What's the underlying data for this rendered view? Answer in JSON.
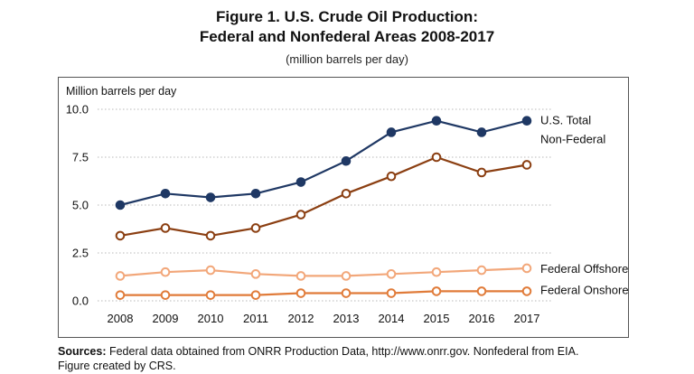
{
  "figure": {
    "title_line1": "Figure 1. U.S. Crude Oil Production:",
    "title_line2": "Federal and Nonfederal Areas 2008-2017",
    "subtitle": "(million barrels per day)",
    "sources_label": "Sources:",
    "sources_text": " Federal data obtained from ONRR Production Data, http://www.onrr.gov. Nonfederal from EIA.",
    "credit": "Figure created by CRS."
  },
  "chart_data": {
    "type": "line",
    "ylabel": "Million barrels per day",
    "xlabel": "",
    "x": [
      "2008",
      "2009",
      "2010",
      "2011",
      "2012",
      "2013",
      "2014",
      "2015",
      "2016",
      "2017"
    ],
    "ylim": [
      0,
      10
    ],
    "yticks": [
      "0.0",
      "2.5",
      "5.0",
      "7.5",
      "10.0"
    ],
    "grid": "horizontal dotted",
    "series": [
      {
        "name": "U.S. Total",
        "color": "#1f3864",
        "marker": "filled-circle",
        "values": [
          5.0,
          5.6,
          5.4,
          5.6,
          6.2,
          7.3,
          8.8,
          9.4,
          8.8,
          9.4
        ]
      },
      {
        "name": "Non-Federal",
        "color": "#8b3f12",
        "marker": "open-circle",
        "values": [
          3.4,
          3.8,
          3.4,
          3.8,
          4.5,
          5.6,
          6.5,
          7.5,
          6.7,
          7.1
        ]
      },
      {
        "name": "Federal Offshore",
        "color": "#f2a77a",
        "marker": "open-circle",
        "values": [
          1.3,
          1.5,
          1.6,
          1.4,
          1.3,
          1.3,
          1.4,
          1.5,
          1.6,
          1.7
        ]
      },
      {
        "name": "Federal Onshore",
        "color": "#e07b39",
        "marker": "open-circle",
        "values": [
          0.3,
          0.3,
          0.3,
          0.3,
          0.4,
          0.4,
          0.4,
          0.5,
          0.5,
          0.5
        ]
      }
    ]
  }
}
